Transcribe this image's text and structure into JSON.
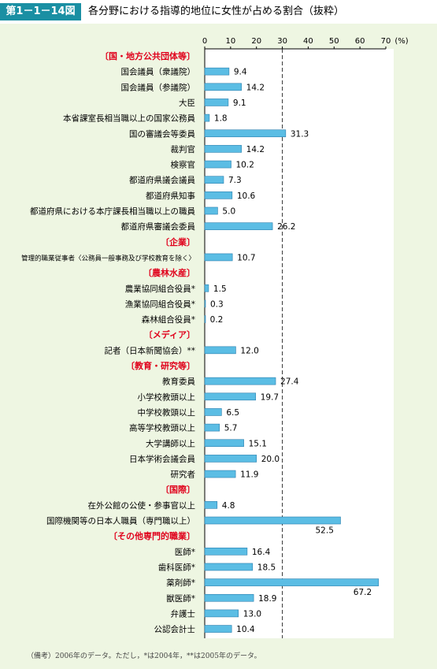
{
  "figure": {
    "label": "第1－1－14図",
    "title": "各分野における指導的地位に女性が占める割合（抜粋）",
    "note": "（備考）2006年のデータ。ただし，*は2004年，**は2005年のデータ。"
  },
  "colors": {
    "accent": "#1a8fa3",
    "section": "#e0001b",
    "bar": "#5bbde4",
    "background": "#eef6e2"
  },
  "chart_data": {
    "type": "bar",
    "orientation": "horizontal",
    "unit": "(%)",
    "xlim": [
      0,
      70
    ],
    "ticks": [
      0,
      10,
      20,
      30,
      40,
      50,
      60,
      70
    ],
    "reference_line": 30,
    "rows": [
      {
        "section": "〔国・地方公共団体等〕"
      },
      {
        "label": "国会議員（衆議院）",
        "value": 9.4,
        "value_label": "9.4"
      },
      {
        "label": "国会議員（参議院）",
        "value": 14.2,
        "value_label": "14.2"
      },
      {
        "label": "大臣",
        "value": 9.1,
        "value_label": "9.1"
      },
      {
        "label": "本省課室長相当職以上の国家公務員",
        "value": 1.8,
        "value_label": "1.8"
      },
      {
        "label": "国の審議会等委員",
        "value": 31.3,
        "value_label": "31.3"
      },
      {
        "label": "裁判官",
        "value": 14.2,
        "value_label": "14.2"
      },
      {
        "label": "検察官",
        "value": 10.2,
        "value_label": "10.2"
      },
      {
        "label": "都道府県議会議員",
        "value": 7.3,
        "value_label": "7.3"
      },
      {
        "label": "都道府県知事",
        "value": 10.6,
        "value_label": "10.6"
      },
      {
        "label": "都道府県における本庁課長相当職以上の職員",
        "value": 5.0,
        "value_label": "5.0"
      },
      {
        "label": "都道府県審議会委員",
        "value": 26.2,
        "value_label": "26.2"
      },
      {
        "section": "〔企業〕"
      },
      {
        "label": "管理的職業従事者〈公務員一般事務及び学校教育を除く〉",
        "value": 10.7,
        "value_label": "10.7",
        "small": true
      },
      {
        "section": "〔農林水産〕"
      },
      {
        "label": "農業協同組合役員*",
        "value": 1.5,
        "value_label": "1.5"
      },
      {
        "label": "漁業協同組合役員*",
        "value": 0.3,
        "value_label": "0.3"
      },
      {
        "label": "森林組合役員*",
        "value": 0.2,
        "value_label": "0.2"
      },
      {
        "section": "〔メディア〕"
      },
      {
        "label": "記者（日本新聞協会）**",
        "value": 12.0,
        "value_label": "12.0"
      },
      {
        "section": "〔教育・研究等〕"
      },
      {
        "label": "教育委員",
        "value": 27.4,
        "value_label": "27.4"
      },
      {
        "label": "小学校教頭以上",
        "value": 19.7,
        "value_label": "19.7"
      },
      {
        "label": "中学校教頭以上",
        "value": 6.5,
        "value_label": "6.5"
      },
      {
        "label": "高等学校教頭以上",
        "value": 5.7,
        "value_label": "5.7"
      },
      {
        "label": "大学講師以上",
        "value": 15.1,
        "value_label": "15.1"
      },
      {
        "label": "日本学術会議会員",
        "value": 20.0,
        "value_label": "20.0"
      },
      {
        "label": "研究者",
        "value": 11.9,
        "value_label": "11.9"
      },
      {
        "section": "〔国際〕"
      },
      {
        "label": "在外公館の公使・参事官以上",
        "value": 4.8,
        "value_label": "4.8"
      },
      {
        "label": "国際機関等の日本人職員（専門職以上）",
        "value": 52.5,
        "value_label": "52.5",
        "label_below": true
      },
      {
        "section": "〔その他専門的職業〕"
      },
      {
        "label": "医師*",
        "value": 16.4,
        "value_label": "16.4"
      },
      {
        "label": "歯科医師*",
        "value": 18.5,
        "value_label": "18.5"
      },
      {
        "label": "薬剤師*",
        "value": 67.2,
        "value_label": "67.2",
        "label_below": true
      },
      {
        "label": "獣医師*",
        "value": 18.9,
        "value_label": "18.9"
      },
      {
        "label": "弁護士",
        "value": 13.0,
        "value_label": "13.0"
      },
      {
        "label": "公認会計士",
        "value": 10.4,
        "value_label": "10.4"
      }
    ]
  }
}
